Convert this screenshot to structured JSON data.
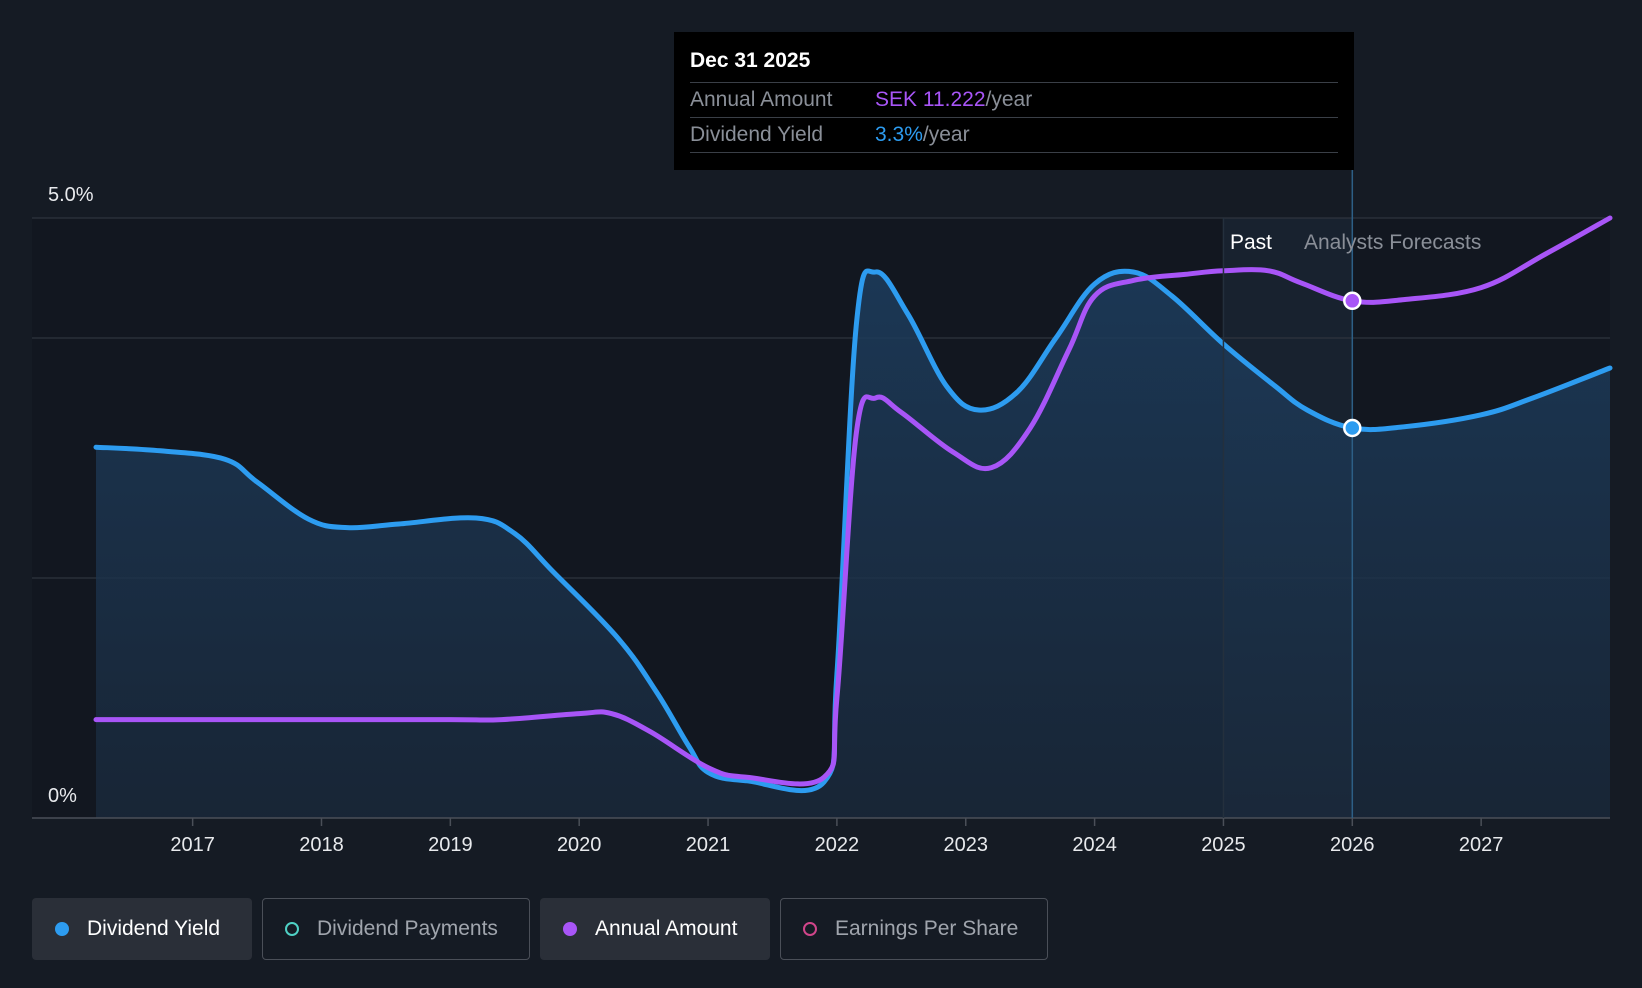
{
  "tooltip": {
    "date": "Dec 31 2025",
    "rows": [
      {
        "label": "Annual Amount",
        "value": "SEK 11.222",
        "unit": "/year"
      },
      {
        "label": "Dividend Yield",
        "value": "3.3%",
        "unit": "/year"
      }
    ]
  },
  "regions": {
    "past": "Past",
    "forecast": "Analysts Forecasts"
  },
  "legend": [
    {
      "label": "Dividend Yield",
      "state": "active",
      "color": "#2d9cf0"
    },
    {
      "label": "Dividend Payments",
      "state": "inactive",
      "color": "#4fd1c5"
    },
    {
      "label": "Annual Amount",
      "state": "active",
      "color": "#a855f7"
    },
    {
      "label": "Earnings Per Share",
      "state": "inactive",
      "color": "#d0458a"
    }
  ],
  "chart_data": {
    "type": "line",
    "y_axis": {
      "top_label": "5.0%",
      "bottom_label": "0%",
      "ylim": [
        0,
        5.0
      ]
    },
    "x_ticks": [
      "2017",
      "2018",
      "2019",
      "2020",
      "2021",
      "2022",
      "2023",
      "2024",
      "2025",
      "2026",
      "2027"
    ],
    "grid": true,
    "past_forecast_divider": 2025.5,
    "series": [
      {
        "name": "Dividend Yield",
        "color": "#2d9cf0",
        "area": true,
        "points": [
          [
            2016.25,
            3.09
          ],
          [
            2016.75,
            3.06
          ],
          [
            2017.25,
            2.99
          ],
          [
            2017.5,
            2.8
          ],
          [
            2017.9,
            2.49
          ],
          [
            2018.2,
            2.42
          ],
          [
            2018.6,
            2.45
          ],
          [
            2019.2,
            2.5
          ],
          [
            2019.5,
            2.37
          ],
          [
            2019.8,
            2.05
          ],
          [
            2020.3,
            1.5
          ],
          [
            2020.6,
            1.05
          ],
          [
            2020.85,
            0.6
          ],
          [
            2021.0,
            0.38
          ],
          [
            2021.3,
            0.31
          ],
          [
            2021.9,
            0.3
          ],
          [
            2022.0,
            1.2
          ],
          [
            2022.15,
            4.1
          ],
          [
            2022.3,
            4.55
          ],
          [
            2022.55,
            4.2
          ],
          [
            2022.85,
            3.6
          ],
          [
            2023.1,
            3.4
          ],
          [
            2023.4,
            3.55
          ],
          [
            2023.7,
            4.0
          ],
          [
            2024.0,
            4.45
          ],
          [
            2024.3,
            4.55
          ],
          [
            2024.6,
            4.35
          ],
          [
            2025.0,
            3.95
          ],
          [
            2025.4,
            3.6
          ],
          [
            2025.65,
            3.4
          ],
          [
            2026.0,
            3.25
          ],
          [
            2026.4,
            3.26
          ],
          [
            2027.0,
            3.36
          ],
          [
            2027.4,
            3.5
          ],
          [
            2028.0,
            3.75
          ]
        ]
      },
      {
        "name": "Annual Amount",
        "color": "#a855f7",
        "area": false,
        "points": [
          [
            2016.25,
            0.82
          ],
          [
            2017.0,
            0.82
          ],
          [
            2018.0,
            0.82
          ],
          [
            2019.0,
            0.82
          ],
          [
            2019.4,
            0.82
          ],
          [
            2020.0,
            0.87
          ],
          [
            2020.25,
            0.87
          ],
          [
            2020.55,
            0.72
          ],
          [
            2021.0,
            0.42
          ],
          [
            2021.3,
            0.34
          ],
          [
            2021.9,
            0.34
          ],
          [
            2022.0,
            1.0
          ],
          [
            2022.15,
            3.2
          ],
          [
            2022.3,
            3.5
          ],
          [
            2022.5,
            3.38
          ],
          [
            2022.9,
            3.05
          ],
          [
            2023.2,
            2.92
          ],
          [
            2023.5,
            3.25
          ],
          [
            2023.8,
            3.9
          ],
          [
            2024.0,
            4.35
          ],
          [
            2024.3,
            4.48
          ],
          [
            2024.7,
            4.53
          ],
          [
            2025.0,
            4.56
          ],
          [
            2025.35,
            4.56
          ],
          [
            2025.6,
            4.46
          ],
          [
            2026.0,
            4.31
          ],
          [
            2026.4,
            4.32
          ],
          [
            2027.0,
            4.42
          ],
          [
            2027.5,
            4.7
          ],
          [
            2028.0,
            5.0
          ]
        ]
      }
    ],
    "highlight": {
      "x": 2026.0,
      "yield": 3.3,
      "annual_amount": 11.222
    }
  }
}
